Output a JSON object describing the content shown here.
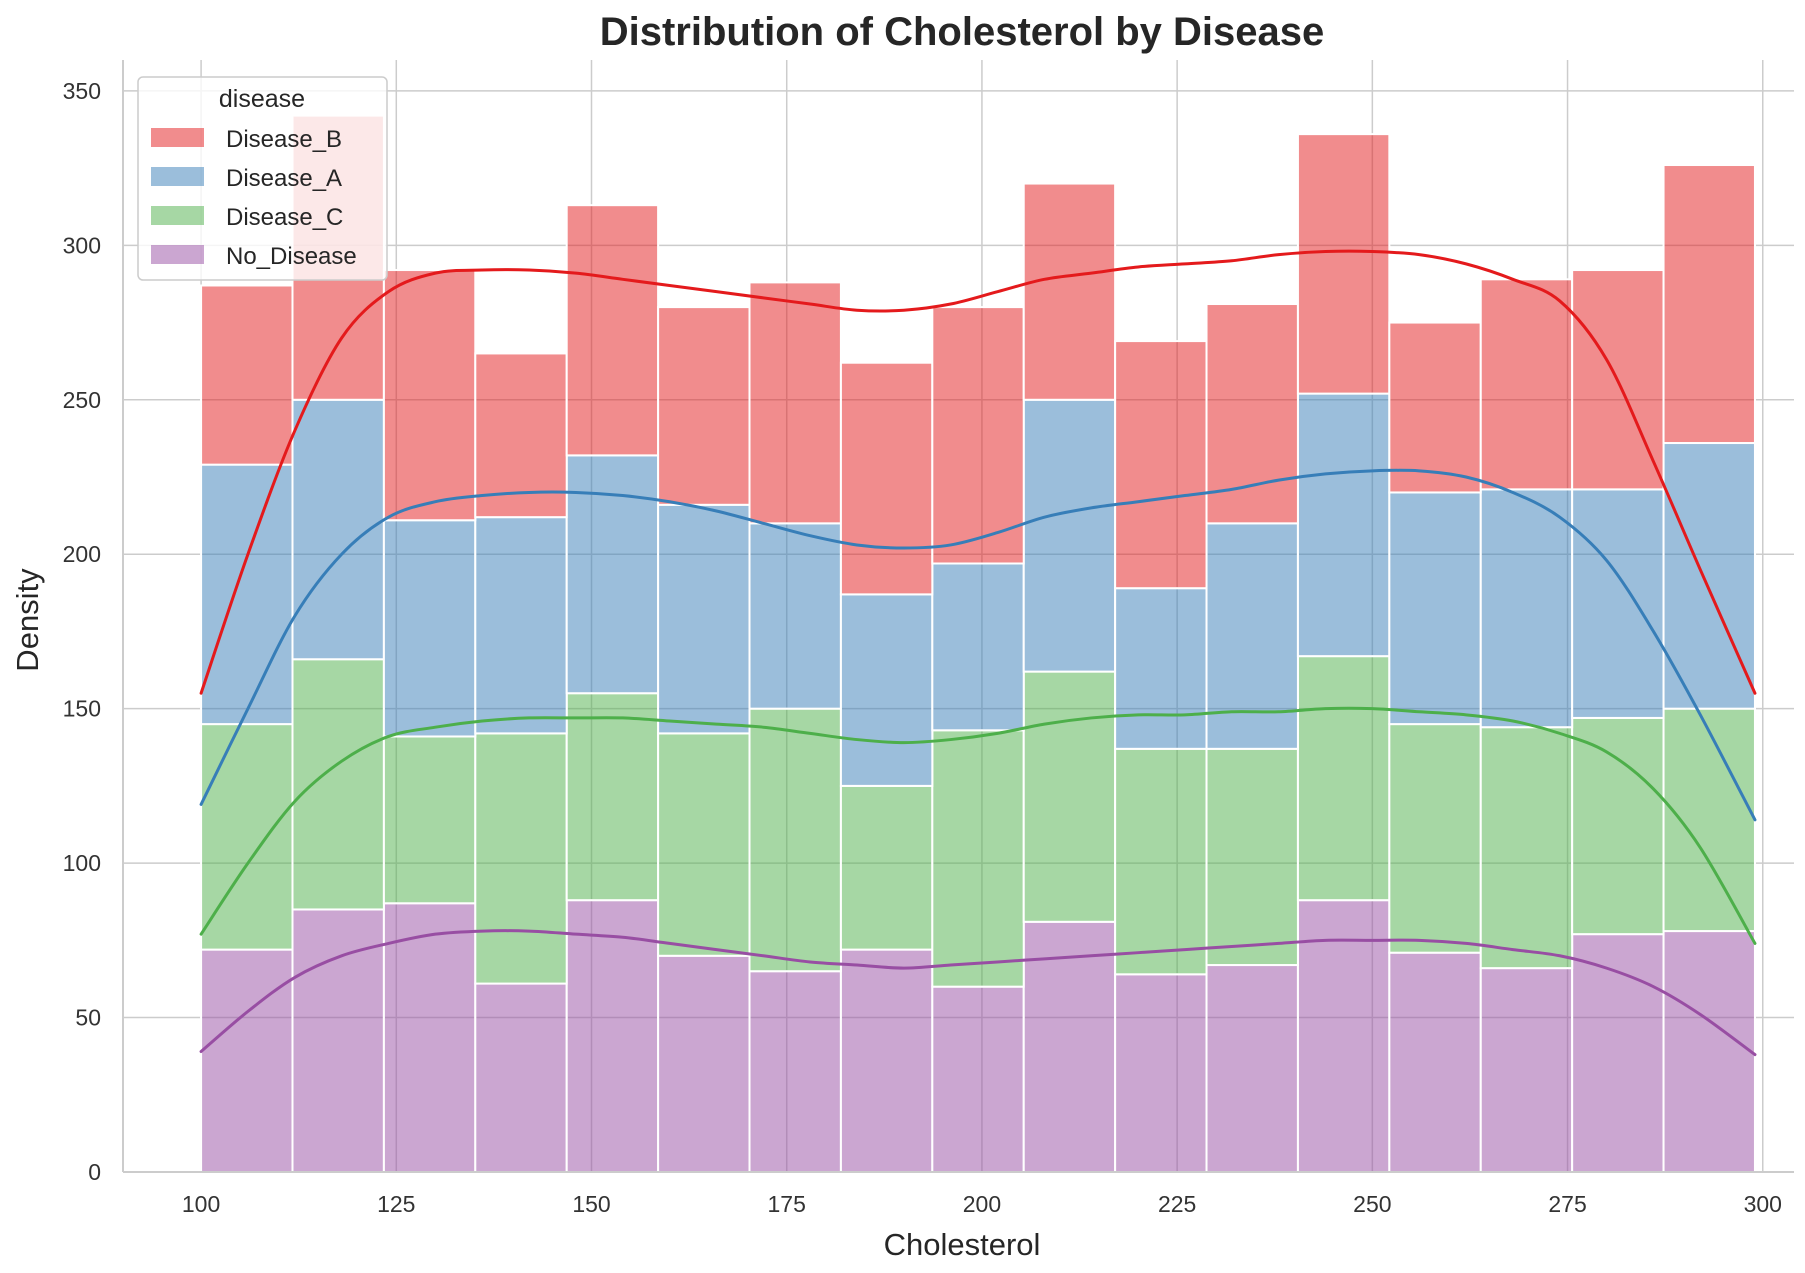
{
  "chart_data": {
    "type": "histogram",
    "stacked": true,
    "title": "Distribution of Cholesterol by Disease",
    "xlabel": "Cholesterol",
    "ylabel": "Density",
    "xlim": [
      90,
      304
    ],
    "ylim": [
      0,
      360
    ],
    "xticks": [
      100,
      125,
      150,
      175,
      200,
      225,
      250,
      275,
      300
    ],
    "yticks": [
      0,
      50,
      100,
      150,
      200,
      250,
      300,
      350
    ],
    "grid": true,
    "legend": {
      "title": "disease",
      "position": "top-left"
    },
    "bin_start": 100,
    "bin_width": 11.67,
    "bin_count": 17,
    "series": [
      {
        "name": "No_Disease",
        "color": "#984ea3",
        "values": [
          72,
          85,
          87,
          61,
          88,
          70,
          65,
          72,
          60,
          81,
          64,
          67,
          88,
          71,
          66,
          77,
          78
        ]
      },
      {
        "name": "Disease_C",
        "color": "#4daf4a",
        "values": [
          73,
          81,
          54,
          81,
          67,
          72,
          85,
          53,
          83,
          81,
          73,
          70,
          79,
          74,
          78,
          70,
          72
        ]
      },
      {
        "name": "Disease_A",
        "color": "#377eb8",
        "values": [
          84,
          84,
          70,
          70,
          77,
          74,
          60,
          62,
          54,
          88,
          52,
          73,
          85,
          75,
          77,
          74,
          86
        ]
      },
      {
        "name": "Disease_B",
        "color": "#e41a1c",
        "values": [
          58,
          92,
          81,
          53,
          81,
          64,
          78,
          75,
          83,
          70,
          80,
          71,
          84,
          55,
          68,
          71,
          90
        ]
      }
    ],
    "kde_series": [
      {
        "name": "No_Disease",
        "color": "#984ea3",
        "x": [
          100,
          106,
          112,
          118,
          124,
          130,
          136,
          142,
          148,
          154,
          160,
          166,
          172,
          178,
          184,
          190,
          196,
          202,
          208,
          214,
          220,
          226,
          232,
          238,
          244,
          250,
          256,
          262,
          268,
          274,
          280,
          286,
          292,
          299
        ],
        "y": [
          39,
          52,
          63,
          70,
          74,
          77,
          78,
          78,
          77,
          76,
          74,
          72,
          70,
          68,
          67,
          66,
          67,
          68,
          69,
          70,
          71,
          72,
          73,
          74,
          75,
          75,
          75,
          74,
          72,
          70,
          66,
          60,
          51,
          38
        ]
      },
      {
        "name": "Disease_C",
        "color": "#4daf4a",
        "x": [
          100,
          106,
          112,
          118,
          124,
          130,
          136,
          142,
          148,
          154,
          160,
          166,
          172,
          178,
          184,
          190,
          196,
          202,
          208,
          214,
          220,
          226,
          232,
          238,
          244,
          250,
          256,
          262,
          268,
          274,
          280,
          286,
          292,
          299
        ],
        "y": [
          77,
          100,
          120,
          133,
          141,
          144,
          146,
          147,
          147,
          147,
          146,
          145,
          144,
          142,
          140,
          139,
          140,
          142,
          145,
          147,
          148,
          148,
          149,
          149,
          150,
          150,
          149,
          148,
          146,
          142,
          136,
          124,
          105,
          74
        ]
      },
      {
        "name": "Disease_A",
        "color": "#377eb8",
        "x": [
          100,
          106,
          112,
          118,
          124,
          130,
          136,
          142,
          148,
          154,
          160,
          166,
          172,
          178,
          184,
          190,
          196,
          202,
          208,
          214,
          220,
          226,
          232,
          238,
          244,
          250,
          256,
          262,
          268,
          274,
          280,
          286,
          292,
          299
        ],
        "y": [
          119,
          150,
          180,
          200,
          212,
          217,
          219,
          220,
          220,
          219,
          217,
          214,
          210,
          206,
          203,
          202,
          203,
          207,
          212,
          215,
          217,
          219,
          221,
          224,
          226,
          227,
          227,
          225,
          220,
          212,
          198,
          175,
          148,
          114
        ]
      },
      {
        "name": "Disease_B",
        "color": "#e41a1c",
        "x": [
          100,
          106,
          112,
          118,
          124,
          130,
          136,
          142,
          148,
          154,
          160,
          166,
          172,
          178,
          184,
          190,
          196,
          202,
          208,
          214,
          220,
          226,
          232,
          238,
          244,
          250,
          256,
          262,
          268,
          274,
          280,
          286,
          292,
          299
        ],
        "y": [
          155,
          200,
          240,
          270,
          285,
          291,
          292,
          292,
          291,
          289,
          287,
          285,
          283,
          281,
          279,
          279,
          281,
          285,
          289,
          291,
          293,
          294,
          295,
          297,
          298,
          298,
          297,
          294,
          289,
          282,
          263,
          230,
          195,
          155
        ]
      }
    ]
  }
}
